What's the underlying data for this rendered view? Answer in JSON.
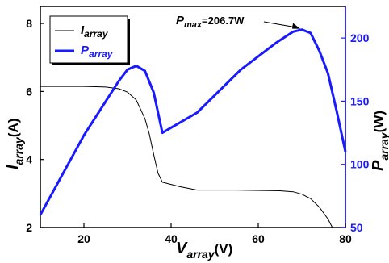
{
  "chart_data": {
    "type": "line",
    "x_axis": {
      "label_main": "V",
      "label_sub": "array",
      "label_unit": "(V)",
      "range": [
        10,
        80
      ],
      "ticks": [
        20,
        40,
        60,
        80
      ]
    },
    "y_left_axis": {
      "label_main": "I",
      "label_sub": "array",
      "label_unit": "(A)",
      "range": [
        2,
        8.5
      ],
      "ticks": [
        2,
        4,
        6,
        8
      ]
    },
    "y_right_axis": {
      "label_main": "P",
      "label_sub": "array",
      "label_unit": "(W)",
      "range": [
        50,
        225
      ],
      "ticks": [
        50,
        100,
        150,
        200
      ],
      "color": "#1a1aff"
    },
    "series": [
      {
        "name_main": "I",
        "name_sub": "array",
        "axis": "left",
        "color": "#000000",
        "x": [
          10,
          20,
          25,
          28,
          30,
          32,
          34,
          35,
          36,
          37,
          38,
          42,
          46,
          55,
          65,
          68,
          70,
          72,
          74,
          76,
          77
        ],
        "y": [
          6.15,
          6.15,
          6.13,
          6.08,
          5.98,
          5.75,
          5.2,
          4.75,
          4.15,
          3.6,
          3.33,
          3.2,
          3.1,
          3.1,
          3.08,
          3.05,
          2.98,
          2.85,
          2.6,
          2.25,
          2.0
        ]
      },
      {
        "name_main": "P",
        "name_sub": "array",
        "axis": "right",
        "color": "#1a1aff",
        "x": [
          10,
          20,
          28,
          30,
          32,
          34,
          36,
          38,
          46,
          56,
          64,
          68,
          70,
          72,
          74,
          76,
          78,
          80
        ],
        "y": [
          60,
          123,
          166,
          175,
          178,
          174,
          157,
          125,
          141,
          175,
          196,
          205,
          206.7,
          204,
          190,
          172,
          142,
          110
        ]
      }
    ],
    "annotation": {
      "main": "P",
      "sub": "max",
      "text": "=206.7W",
      "x": 70,
      "y": 206.7
    },
    "legend_position": "top-left",
    "grid": false
  }
}
